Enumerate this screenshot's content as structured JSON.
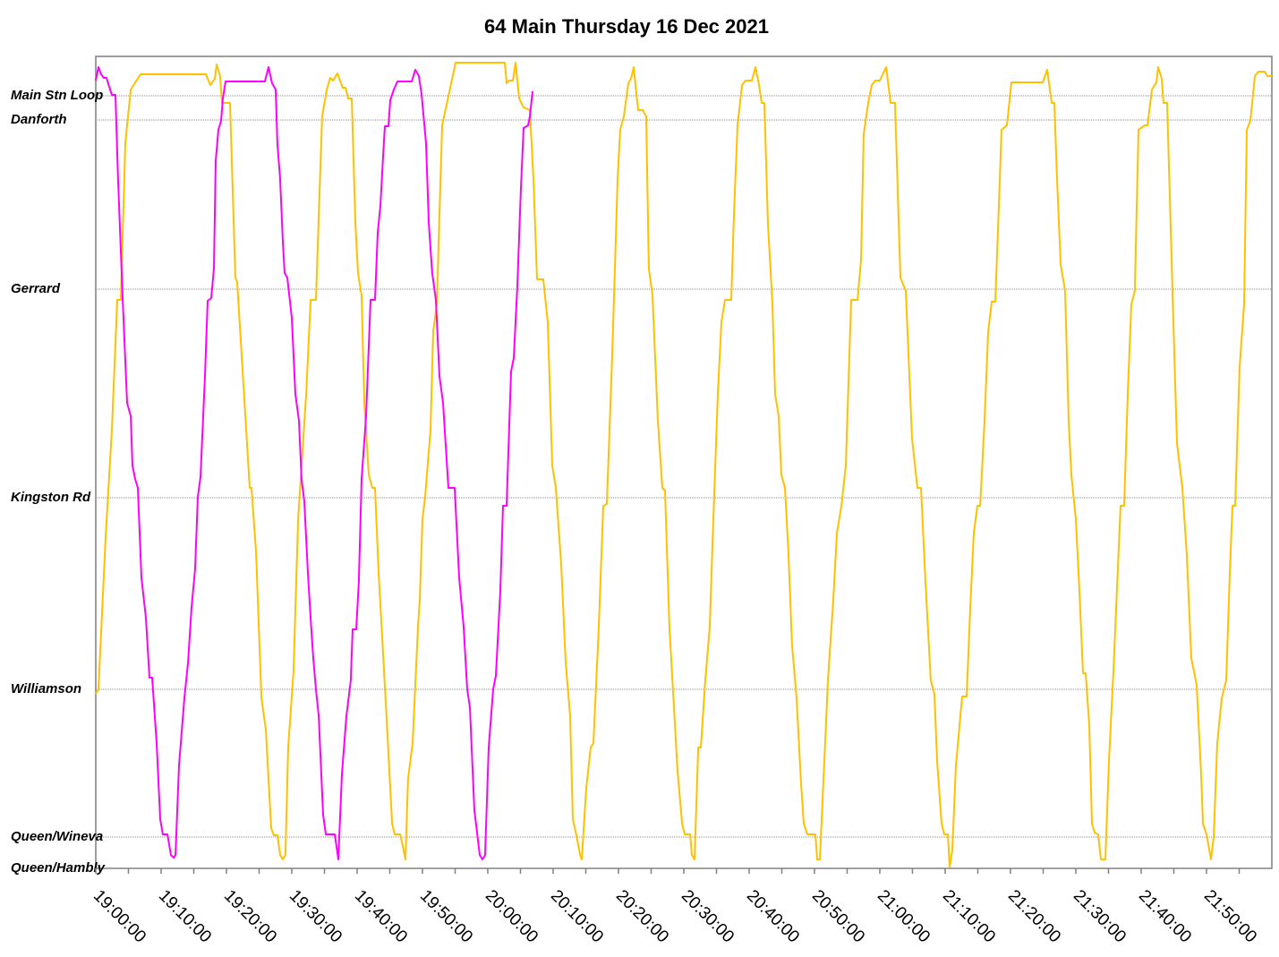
{
  "chart_data": {
    "type": "line",
    "title": "64 Main Thursday 16 Dec 2021",
    "xlim": [
      "19:00:00",
      "22:00:00"
    ],
    "xticks": [
      "19:00:00",
      "19:10:00",
      "19:20:00",
      "19:30:00",
      "19:40:00",
      "19:50:00",
      "20:00:00",
      "20:10:00",
      "20:20:00",
      "20:30:00",
      "20:40:00",
      "20:50:00",
      "21:00:00",
      "21:10:00",
      "21:20:00",
      "21:30:00",
      "21:40:00",
      "21:50:00"
    ],
    "ylim": [
      0,
      9.07
    ],
    "yticks": [
      {
        "value": 0,
        "label": "Queen/Hambly"
      },
      {
        "value": 0.35,
        "label": "Queen/Wineva"
      },
      {
        "value": 2.0,
        "label": "Williamson"
      },
      {
        "value": 4.14,
        "label": "Kingston Rd"
      },
      {
        "value": 6.47,
        "label": "Gerrard"
      },
      {
        "value": 8.36,
        "label": "Danforth"
      },
      {
        "value": 8.63,
        "label": "Main Stn Loop"
      }
    ],
    "grid": true,
    "series": [
      {
        "color": "#FFC000",
        "x": [
          "19:00:00",
          "19:00:25",
          "19:01:30",
          "19:02:28",
          "19:03:17",
          "19:03:50",
          "19:04:31",
          "19:05:21",
          "19:06:51",
          "19:16:51",
          "19:17:32",
          "19:18:13",
          "19:18:30",
          "19:19:02",
          "19:19:19",
          "19:20:33",
          "19:21:22",
          "19:21:39",
          "19:22:36",
          "19:23:34",
          "19:23:50",
          "19:24:31",
          "19:25:21",
          "19:26:02",
          "19:26:51",
          "19:27:16",
          "19:27:48",
          "19:28:13",
          "19:28:38",
          "19:29:02",
          "19:29:27",
          "19:30:16",
          "19:30:58",
          "19:32:12",
          "19:32:53",
          "19:33:42",
          "19:34:39",
          "19:35:21",
          "19:35:53",
          "19:36:18",
          "19:36:59",
          "19:37:48",
          "19:38:13",
          "19:38:38",
          "19:39:11",
          "19:39:44",
          "19:40:08",
          "19:40:41",
          "19:41:06",
          "19:41:47",
          "19:42:20",
          "19:42:44",
          "19:43:17",
          "19:43:58",
          "19:44:39",
          "19:45:21",
          "19:45:45",
          "19:46:35",
          "19:46:59",
          "19:47:24",
          "19:47:48",
          "19:48:30",
          "19:49:19",
          "19:49:35",
          "19:50:00",
          "19:50:25",
          "19:51:14",
          "19:51:39",
          "19:52:12",
          "19:52:36",
          "19:53:01",
          "19:55:04",
          "20:02:36",
          "20:02:53",
          "20:03:17",
          "20:03:50",
          "20:04:15",
          "20:04:48",
          "20:05:29",
          "20:06:26",
          "20:06:59",
          "20:07:32",
          "20:08:30",
          "20:09:11",
          "20:09:52",
          "20:10:25",
          "20:11:14",
          "20:11:55",
          "20:12:36",
          "20:13:01",
          "20:13:34",
          "20:14:07",
          "20:14:23",
          "20:15:04",
          "20:15:45",
          "20:16:10",
          "20:16:59",
          "20:17:40",
          "20:18:13",
          "20:19:02",
          "20:19:27",
          "20:19:52",
          "20:20:16",
          "20:20:49",
          "20:21:30",
          "20:21:55",
          "20:22:20",
          "20:22:44",
          "20:23:01",
          "20:23:42",
          "20:24:15",
          "20:24:39",
          "20:25:12",
          "20:26:02",
          "20:26:43",
          "20:27:07",
          "20:27:48",
          "20:28:30",
          "20:29:02",
          "20:29:44",
          "20:30:08",
          "20:30:58",
          "20:31:14",
          "20:31:39",
          "20:32:12",
          "20:32:36",
          "20:33:17",
          "20:33:58",
          "20:34:31",
          "20:35:12",
          "20:35:45",
          "20:36:18",
          "20:37:16",
          "20:37:40",
          "20:38:13",
          "20:38:54",
          "20:39:27",
          "20:40:25",
          "20:40:58",
          "20:41:30",
          "20:41:55",
          "20:42:20",
          "20:42:53",
          "20:43:34",
          "20:43:58",
          "20:44:31",
          "20:44:56",
          "20:45:29",
          "20:46:02",
          "20:46:34",
          "20:47:16",
          "20:47:57",
          "20:48:21",
          "20:48:54",
          "20:50:08",
          "20:50:25",
          "20:50:49",
          "20:51:30",
          "20:52:03",
          "20:52:53",
          "20:53:26",
          "20:54:07",
          "20:54:48",
          "20:55:37",
          "20:56:35",
          "20:57:07",
          "20:57:32",
          "20:58:13",
          "20:58:46",
          "20:59:19",
          "21:00:00",
          "21:00:58",
          "21:01:39",
          "21:02:20",
          "21:03:09",
          "21:03:58",
          "21:04:56",
          "21:05:45",
          "21:06:18",
          "21:06:59",
          "21:07:48",
          "21:08:21",
          "21:08:46",
          "21:09:27",
          "21:09:52",
          "21:10:25",
          "21:10:41",
          "21:11:06",
          "21:11:39",
          "21:12:36",
          "21:13:17",
          "21:13:50",
          "21:14:23",
          "21:14:56",
          "21:15:21",
          "21:16:02",
          "21:16:35",
          "21:17:07",
          "21:17:40",
          "21:18:13",
          "21:18:38",
          "21:19:27",
          "21:20:08",
          "21:24:56",
          "21:25:37",
          "21:26:18",
          "21:26:43",
          "21:27:07",
          "21:27:40",
          "21:28:21",
          "21:28:54",
          "21:29:19",
          "21:30:00",
          "21:30:33",
          "21:31:06",
          "21:31:30",
          "21:32:03",
          "21:32:28",
          "21:32:53",
          "21:33:25",
          "21:33:50",
          "21:34:31",
          "21:35:04",
          "21:35:45",
          "21:36:10",
          "21:36:51",
          "21:37:24",
          "21:37:57",
          "21:38:30",
          "21:39:02",
          "21:39:35",
          "21:40:33",
          "21:40:58",
          "21:41:39",
          "21:42:20",
          "21:42:36",
          "21:43:09",
          "21:43:25",
          "21:43:58",
          "21:44:56",
          "21:45:29",
          "21:46:18",
          "21:46:59",
          "21:47:40",
          "21:48:30",
          "21:49:11",
          "21:49:27",
          "21:50:00",
          "21:50:41",
          "21:51:06",
          "21:51:39",
          "21:52:20",
          "21:53:01",
          "21:53:34",
          "21:53:58",
          "21:54:23",
          "21:55:04",
          "21:55:45",
          "21:56:10",
          "21:56:43",
          "21:57:24",
          "21:57:57",
          "21:58:54",
          "21:59:19",
          "22:00:00"
        ],
        "values": [
          1.95,
          2.0,
          3.7,
          4.9,
          6.35,
          6.35,
          8.1,
          8.7,
          8.87,
          8.87,
          8.75,
          8.82,
          8.98,
          8.85,
          8.55,
          8.55,
          6.6,
          6.55,
          5.4,
          4.25,
          4.25,
          3.55,
          1.9,
          1.55,
          0.45,
          0.37,
          0.37,
          0.15,
          0.1,
          0.15,
          1.35,
          2.2,
          3.9,
          5.3,
          6.35,
          6.35,
          8.4,
          8.7,
          8.83,
          8.8,
          8.88,
          8.72,
          8.72,
          8.6,
          8.6,
          7.2,
          6.65,
          6.4,
          5.2,
          4.4,
          4.25,
          4.25,
          3.3,
          2.4,
          1.5,
          0.5,
          0.38,
          0.38,
          0.25,
          0.1,
          1.0,
          1.4,
          2.7,
          3.0,
          3.9,
          4.15,
          4.9,
          6.0,
          6.3,
          7.3,
          8.3,
          9.0,
          9.0,
          8.77,
          8.8,
          8.8,
          9.0,
          8.6,
          8.5,
          8.47,
          7.7,
          6.58,
          6.58,
          6.1,
          4.5,
          4.25,
          3.4,
          2.3,
          1.7,
          0.55,
          0.37,
          0.15,
          0.1,
          0.9,
          1.35,
          1.4,
          2.7,
          4.05,
          4.07,
          5.7,
          6.7,
          7.7,
          8.25,
          8.4,
          8.77,
          8.82,
          8.95,
          8.65,
          8.47,
          8.47,
          8.4,
          6.7,
          6.4,
          5.0,
          4.25,
          4.22,
          2.7,
          1.8,
          1.1,
          0.5,
          0.38,
          0.38,
          0.15,
          0.1,
          1.35,
          1.35,
          2.1,
          2.7,
          3.9,
          5.3,
          6.1,
          6.35,
          6.35,
          7.3,
          8.3,
          8.75,
          8.8,
          8.8,
          8.95,
          8.75,
          8.55,
          8.55,
          7.2,
          6.3,
          5.3,
          5.05,
          4.4,
          4.25,
          3.5,
          2.5,
          1.9,
          0.95,
          0.5,
          0.38,
          0.38,
          0.1,
          0.1,
          1.2,
          2.1,
          3.0,
          3.75,
          4.05,
          4.5,
          6.35,
          6.35,
          6.8,
          8.2,
          8.55,
          8.75,
          8.8,
          8.8,
          8.95,
          8.55,
          8.55,
          6.6,
          6.45,
          4.8,
          4.25,
          4.25,
          3.2,
          2.1,
          1.95,
          1.2,
          0.5,
          0.38,
          0.38,
          0.02,
          0.2,
          1.15,
          1.92,
          1.92,
          2.9,
          3.75,
          4.05,
          4.05,
          5.0,
          6.0,
          6.33,
          6.33,
          7.4,
          8.25,
          8.3,
          8.78,
          8.78,
          8.92,
          8.55,
          8.55,
          7.7,
          6.75,
          6.45,
          5.0,
          4.4,
          3.9,
          3.1,
          2.18,
          2.18,
          1.6,
          0.5,
          0.4,
          0.38,
          0.1,
          0.1,
          1.2,
          2.2,
          2.9,
          4.05,
          4.05,
          5.3,
          6.3,
          6.45,
          8.25,
          8.3,
          8.3,
          8.7,
          8.78,
          8.95,
          8.82,
          8.55,
          8.55,
          6.1,
          4.75,
          4.25,
          3.5,
          2.35,
          2.05,
          1.05,
          0.5,
          0.38,
          0.1,
          0.35,
          1.4,
          1.9,
          2.1,
          3.3,
          4.05,
          4.05,
          5.6,
          6.3,
          8.25,
          8.35,
          8.85,
          8.9,
          8.9,
          8.85,
          8.85
        ]
      },
      {
        "color": "#FF00FF",
        "x": [
          "19:00:00",
          "19:00:25",
          "19:00:49",
          "19:01:14",
          "19:01:39",
          "19:02:03",
          "19:02:28",
          "19:03:01",
          "19:03:25",
          "19:04:07",
          "19:04:48",
          "19:05:21",
          "19:05:37",
          "19:06:02",
          "19:06:26",
          "19:06:59",
          "19:07:40",
          "19:08:13",
          "19:08:38",
          "19:09:19",
          "19:09:52",
          "19:10:16",
          "19:10:58",
          "19:11:30",
          "19:11:55",
          "19:12:12",
          "19:12:44",
          "19:13:34",
          "19:14:07",
          "19:14:39",
          "19:15:12",
          "19:15:37",
          "19:16:02",
          "19:16:43",
          "19:17:07",
          "19:17:40",
          "19:18:05",
          "19:18:21",
          "19:18:46",
          "19:19:11",
          "19:19:27",
          "19:19:52",
          "19:25:53",
          "19:26:26",
          "19:26:59",
          "19:27:32",
          "19:27:48",
          "19:28:13",
          "19:28:38",
          "19:28:54",
          "19:29:19",
          "19:30:00",
          "19:30:33",
          "19:31:06",
          "19:31:30",
          "19:31:55",
          "19:32:28",
          "19:32:53",
          "19:33:17",
          "19:33:42",
          "19:34:07",
          "19:34:48",
          "19:35:12",
          "19:36:35",
          "19:37:07",
          "19:37:40",
          "19:38:21",
          "19:39:02",
          "19:39:19",
          "19:39:52",
          "19:40:16",
          "19:40:41",
          "19:41:22",
          "19:42:03",
          "19:42:44",
          "19:43:09",
          "19:43:34",
          "19:43:58",
          "19:44:15",
          "19:44:48",
          "19:45:04",
          "19:45:37",
          "19:46:10",
          "19:48:21",
          "19:48:54",
          "19:49:27",
          "19:49:52",
          "19:50:33",
          "19:50:58",
          "19:51:30",
          "19:52:03",
          "19:52:36",
          "19:53:09",
          "19:53:58",
          "19:54:56",
          "19:55:37",
          "19:56:18",
          "19:56:51",
          "19:57:16",
          "19:57:57",
          "19:58:46",
          "19:59:11",
          "19:59:35",
          "20:00:08",
          "20:00:49",
          "20:01:14",
          "20:01:55",
          "20:02:20",
          "20:02:53",
          "20:03:34",
          "20:03:58",
          "20:04:31",
          "20:05:04",
          "20:05:29",
          "20:06:10",
          "20:06:26",
          "20:06:51"
        ],
        "values": [
          8.8,
          8.95,
          8.87,
          8.83,
          8.83,
          8.73,
          8.64,
          8.64,
          7.7,
          6.35,
          5.2,
          5.05,
          4.5,
          4.35,
          4.25,
          3.25,
          2.8,
          2.13,
          2.13,
          1.4,
          0.55,
          0.38,
          0.38,
          0.15,
          0.12,
          0.15,
          1.15,
          1.9,
          2.3,
          2.9,
          3.35,
          4.15,
          4.37,
          5.5,
          6.34,
          6.37,
          6.7,
          7.9,
          8.25,
          8.35,
          8.6,
          8.79,
          8.79,
          8.95,
          8.77,
          8.7,
          8.1,
          7.7,
          7.0,
          6.65,
          6.6,
          6.15,
          5.3,
          5.0,
          4.35,
          4.1,
          3.3,
          2.8,
          2.35,
          2.0,
          1.7,
          0.6,
          0.38,
          0.38,
          0.1,
          1.05,
          1.7,
          2.1,
          2.67,
          2.67,
          3.2,
          4.35,
          5.05,
          6.35,
          6.35,
          7.1,
          7.4,
          7.95,
          8.29,
          8.29,
          8.58,
          8.7,
          8.79,
          8.79,
          8.92,
          8.85,
          8.65,
          8.1,
          7.2,
          6.65,
          6.35,
          5.5,
          5.2,
          4.25,
          4.25,
          3.25,
          2.7,
          2.0,
          1.8,
          0.65,
          0.15,
          0.1,
          0.15,
          1.35,
          2.0,
          2.15,
          3.1,
          4.05,
          4.05,
          5.55,
          5.7,
          6.5,
          7.6,
          8.27,
          8.3,
          8.4,
          8.68
        ]
      }
    ]
  }
}
